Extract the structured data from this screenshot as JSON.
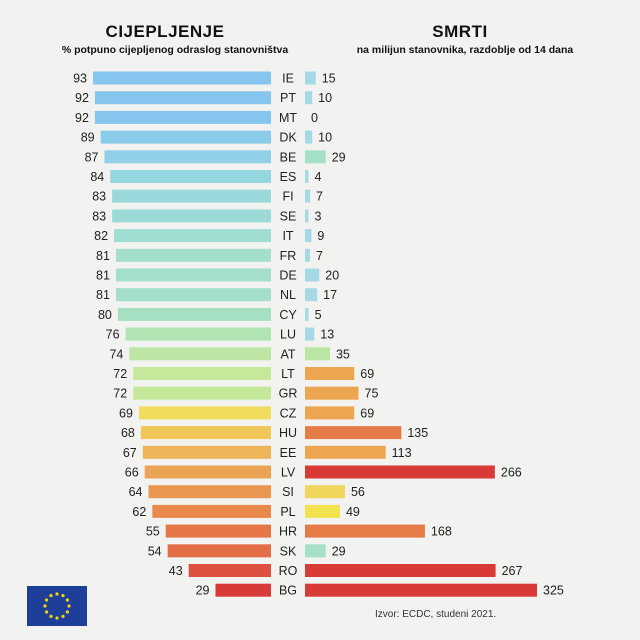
{
  "left_title": "CIJEPLJENJE",
  "left_subtitle": "% potpuno cijepljenog odraslog stanovništva",
  "right_title": "SMRTI",
  "right_subtitle": "na milijun stanovnika, razdoblje od 14 dana",
  "source": "Izvor:  ECDC, studeni 2021.",
  "chart_data": {
    "type": "bar",
    "categories": [
      "IE",
      "PT",
      "MT",
      "DK",
      "BE",
      "ES",
      "FI",
      "SE",
      "IT",
      "FR",
      "DE",
      "NL",
      "CY",
      "LU",
      "AT",
      "LT",
      "GR",
      "CZ",
      "HU",
      "EE",
      "LV",
      "SI",
      "PL",
      "HR",
      "SK",
      "RO",
      "BG"
    ],
    "series": [
      {
        "name": "CIJEPLJENJE",
        "values": [
          93,
          92,
          92,
          89,
          87,
          84,
          83,
          83,
          82,
          81,
          81,
          81,
          80,
          76,
          74,
          72,
          72,
          69,
          68,
          67,
          66,
          64,
          62,
          55,
          54,
          43,
          29
        ]
      },
      {
        "name": "SMRTI",
        "values": [
          15,
          10,
          0,
          10,
          29,
          4,
          7,
          3,
          9,
          7,
          20,
          17,
          5,
          13,
          35,
          69,
          75,
          69,
          135,
          113,
          266,
          56,
          49,
          168,
          29,
          267,
          325
        ]
      }
    ],
    "colors_left": [
      "#86c6ee",
      "#86c6ee",
      "#86c6ee",
      "#8ccceb",
      "#90d0e8",
      "#96d6e0",
      "#9ad8dc",
      "#9cdad8",
      "#a0ddd2",
      "#a3dfca",
      "#a3dfca",
      "#a3dfca",
      "#a6e0c2",
      "#b0e4b2",
      "#bde6a4",
      "#c6e89a",
      "#c6e89a",
      "#f1dc5e",
      "#f0c658",
      "#eeb458",
      "#eaa454",
      "#e99650",
      "#e98a4c",
      "#e57648",
      "#e36e46",
      "#de5040",
      "#d83a38"
    ],
    "colors_right": [
      "#a5d9e6",
      "#a5d9e6",
      "#a5d9e6",
      "#a5d9e6",
      "#a6e0c6",
      "#a5d9e6",
      "#a5d9e6",
      "#a5d9e6",
      "#a5d9e6",
      "#a5d9e6",
      "#a5d9e6",
      "#a5d9e6",
      "#a5d9e6",
      "#a5d9e6",
      "#b9e6a2",
      "#eda650",
      "#eda650",
      "#eda650",
      "#e57c48",
      "#eda650",
      "#d83a38",
      "#f1d65e",
      "#f1e24e",
      "#e57c48",
      "#a6e0c6",
      "#d83a38",
      "#d83a38"
    ]
  }
}
